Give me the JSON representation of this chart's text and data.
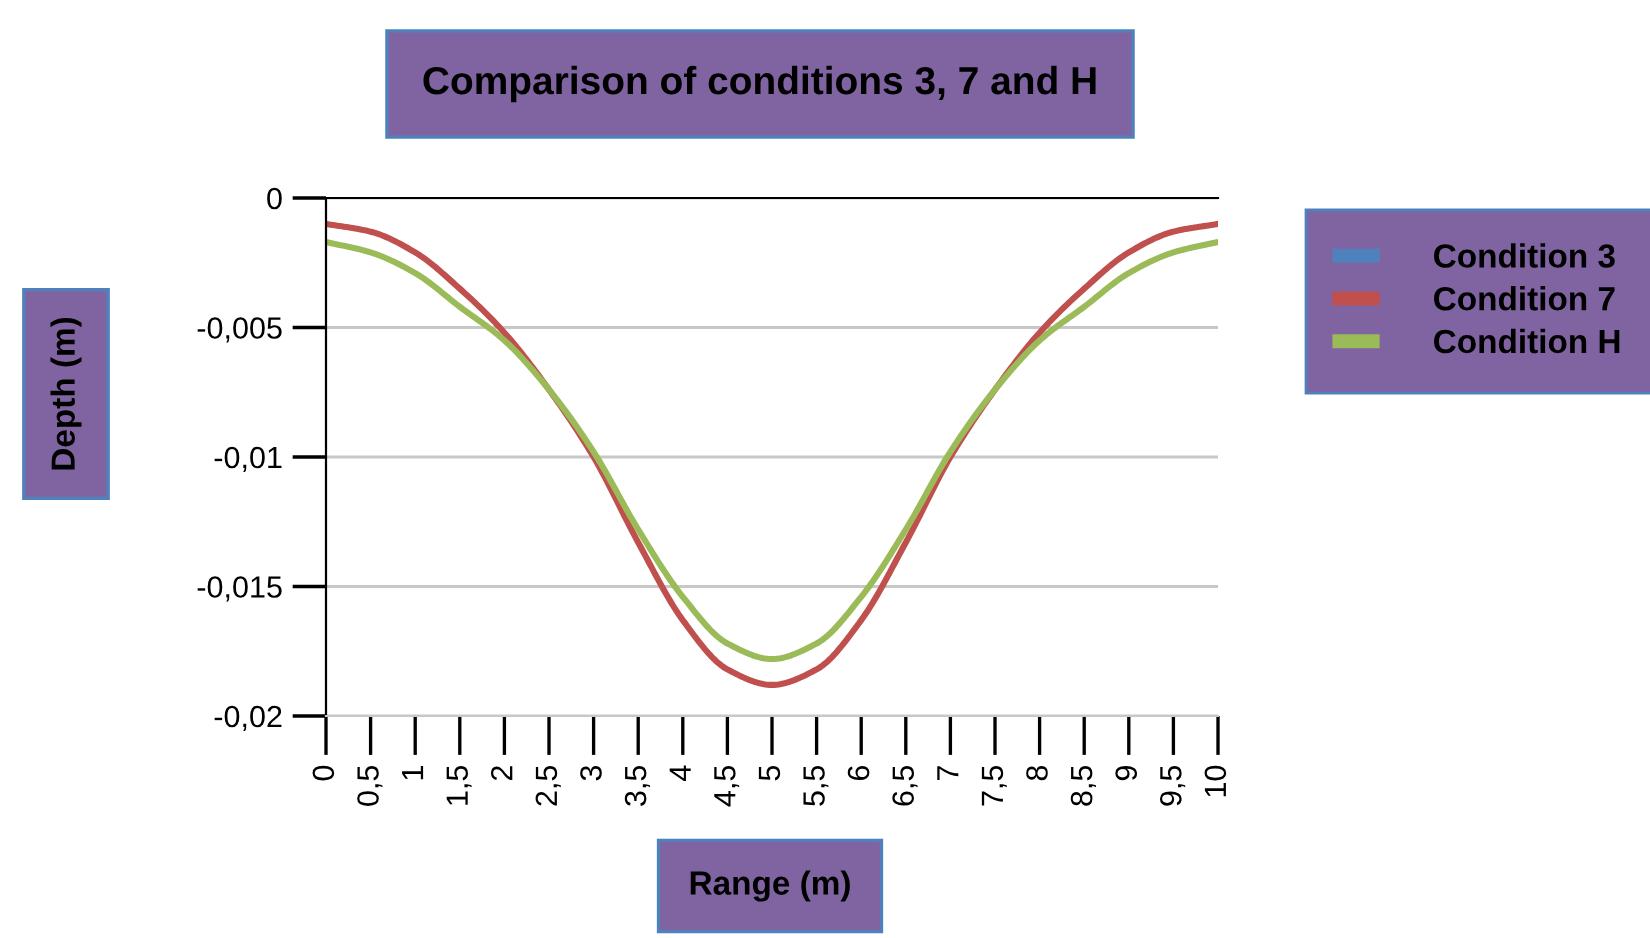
{
  "chart_data": {
    "type": "line",
    "title": "Comparison of conditions 3, 7 and H",
    "xlabel": "Range (m)",
    "ylabel": "Depth (m)",
    "x": [
      0,
      0.5,
      1,
      1.5,
      2,
      2.5,
      3,
      3.5,
      4,
      4.5,
      5,
      5.5,
      6,
      6.5,
      7,
      7.5,
      8,
      8.5,
      9,
      9.5,
      10
    ],
    "series": [
      {
        "name": "Condition 3",
        "color": "#4f81bd",
        "values": [
          null,
          null,
          null,
          null,
          null,
          null,
          null,
          null,
          null,
          null,
          null,
          null,
          null,
          null,
          null,
          null,
          null,
          null,
          null,
          null,
          null
        ]
      },
      {
        "name": "Condition 7",
        "color": "#c0504d",
        "values": [
          -0.001,
          -0.0013,
          -0.0021,
          -0.0035,
          -0.0052,
          -0.0074,
          -0.01,
          -0.0133,
          -0.0163,
          -0.0182,
          -0.0188,
          -0.0182,
          -0.0163,
          -0.0133,
          -0.01,
          -0.0074,
          -0.0052,
          -0.0035,
          -0.0021,
          -0.0013,
          -0.001
        ]
      },
      {
        "name": "Condition H",
        "color": "#9bbb59",
        "values": [
          -0.0017,
          -0.0021,
          -0.0029,
          -0.0042,
          -0.0055,
          -0.0074,
          -0.0098,
          -0.0128,
          -0.0154,
          -0.0172,
          -0.0178,
          -0.0172,
          -0.0154,
          -0.0128,
          -0.0098,
          -0.0074,
          -0.0055,
          -0.0042,
          -0.0029,
          -0.0021,
          -0.0017
        ]
      }
    ],
    "xlim": [
      0,
      10
    ],
    "xticks": [
      0,
      {
        "value": 0.5,
        "label": "0,5"
      },
      1,
      {
        "value": 1.5,
        "label": "1,5"
      },
      2,
      {
        "value": 2.5,
        "label": "2,5"
      },
      3,
      {
        "value": 3.5,
        "label": "3,5"
      },
      4,
      {
        "value": 4.5,
        "label": "4,5"
      },
      5,
      {
        "value": 5.5,
        "label": "5,5"
      },
      6,
      {
        "value": 6.5,
        "label": "6,5"
      },
      7,
      {
        "value": 7.5,
        "label": "7,5"
      },
      8,
      {
        "value": 8.5,
        "label": "8,5"
      },
      9,
      {
        "value": 9.5,
        "label": "9,5"
      },
      10
    ],
    "ylim": [
      -0.02,
      0
    ],
    "yticks": [
      0,
      {
        "value": -0.005,
        "label": "-0,005"
      },
      {
        "value": -0.01,
        "label": "-0,01"
      },
      {
        "value": -0.015,
        "label": "-0,015"
      },
      {
        "value": -0.02,
        "label": "-0,02"
      }
    ],
    "grid": "y",
    "legend": "right",
    "marker": "none",
    "line_style": "solid"
  }
}
